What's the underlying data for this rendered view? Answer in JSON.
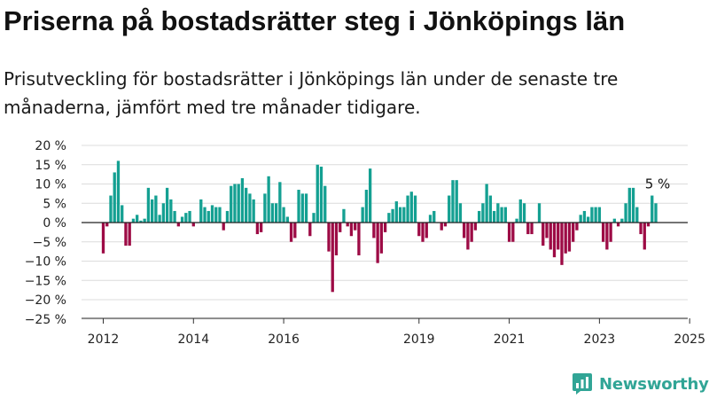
{
  "title": "Priserna på bostadsrätter steg i Jönköpings län",
  "subtitle": "Prisutveckling för bostadsrätter i Jönköpings län under de senaste tre månaderna, jämfört med tre månader tidigare.",
  "brand": {
    "name": "Newsworthy",
    "color": "#31a596"
  },
  "chart_data": {
    "type": "bar",
    "title": "",
    "xlabel": "",
    "ylabel": "",
    "ylim": [
      -25,
      20
    ],
    "y_ticks": [
      20,
      15,
      10,
      5,
      0,
      -5,
      -10,
      -15,
      -20,
      -25
    ],
    "y_tick_labels": [
      "20 %",
      "15 %",
      "10 %",
      "5 %",
      "0 %",
      "−5 %",
      "−10 %",
      "−15 %",
      "−20 %",
      "−25 %"
    ],
    "x_ticks": [
      "2012",
      "2014",
      "2016",
      "2019",
      "2021",
      "2023",
      "2025"
    ],
    "grid": "horizontal",
    "colors": {
      "positive": "#14a092",
      "negative": "#9d0b45"
    },
    "end_label": "5 %",
    "start_month": "2012-01",
    "end_month": "2025-04",
    "values": [
      -8,
      -1,
      7,
      13,
      16,
      4.5,
      -6,
      -6,
      1,
      2,
      0.5,
      1,
      9,
      6,
      7,
      2,
      5,
      9,
      6,
      3,
      -1,
      1.5,
      2.5,
      3,
      -1,
      0,
      6,
      4,
      3,
      4.5,
      4,
      4,
      -2,
      3,
      9.5,
      10,
      10,
      11.5,
      9,
      7.5,
      6,
      -3,
      -2.5,
      7.5,
      12,
      5,
      5,
      10.5,
      4,
      1.5,
      -5,
      -4,
      8.5,
      7.5,
      7.5,
      -3.5,
      2.5,
      15,
      14.5,
      9.5,
      -7.5,
      -18,
      -8.5,
      -2.5,
      3.5,
      -1,
      -3.5,
      -2,
      -8.5,
      4,
      8.5,
      14,
      -4,
      -10.5,
      -8,
      -2.5,
      2.5,
      3.5,
      5.5,
      4,
      4,
      7,
      8,
      7,
      -3.5,
      -5,
      -4,
      2,
      3,
      0,
      -2,
      -1,
      7,
      11,
      11,
      5,
      -4,
      -7,
      -5,
      -2,
      3,
      5,
      10,
      7,
      3,
      5,
      4,
      4,
      -5,
      -5,
      1,
      6,
      5,
      -3,
      -3,
      0,
      5,
      -6,
      -4,
      -7,
      -9,
      -7,
      -11,
      -8,
      -7.5,
      -5,
      -2,
      2,
      3,
      1.5,
      4,
      4,
      4,
      -5,
      -7,
      -5,
      1,
      -1,
      1,
      5,
      9,
      9,
      4,
      -3,
      -7,
      -1,
      7,
      5
    ]
  }
}
